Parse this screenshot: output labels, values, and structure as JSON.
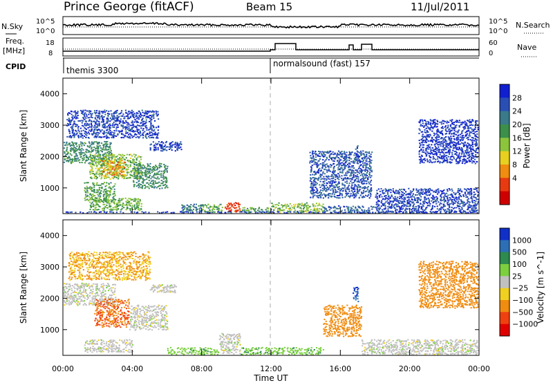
{
  "header": {
    "title": "Prince George (fitACF)",
    "beam": "Beam 15",
    "date": "11/Jul/2011"
  },
  "status": {
    "nsky_label": "N.Sky",
    "nsearch_label": "N.Search",
    "freq_label": "Freq.",
    "freq_unit": "[MHz]",
    "nave_label": "Nave",
    "cpid_label": "CPID",
    "noise_ticks_left": [
      "10^5",
      "10^0"
    ],
    "noise_ticks_right": [
      "10^5",
      "10^0"
    ],
    "freq_ticks": [
      "18",
      "8"
    ],
    "nave_ticks": [
      "60",
      "0"
    ],
    "cpid_segments": [
      {
        "label": "themis 3300",
        "start_hour": 0
      },
      {
        "label": "normalsound (fast) 157",
        "start_hour": 12
      }
    ]
  },
  "axes": {
    "ylabel": "Slant Range [km]",
    "xlabel": "Time UT",
    "y_ticks": [
      "4000",
      "3000",
      "2000",
      "1000"
    ],
    "y_tick_values": [
      4000,
      3000,
      2000,
      1000
    ],
    "x_ticks": [
      "00:00",
      "04:00",
      "08:00",
      "12:00",
      "16:00",
      "20:00",
      "00:00"
    ],
    "x_tick_hours": [
      0,
      4,
      8,
      12,
      16,
      20,
      24
    ]
  },
  "chart_data": [
    {
      "type": "heatmap",
      "parameter": "Power",
      "colorbar_label": "Power [dB]",
      "colorbar_ticks": [
        "28",
        "24",
        "20",
        "16",
        "12",
        "8",
        "4"
      ],
      "colorbar_values": [
        28,
        24,
        20,
        16,
        12,
        8,
        4
      ],
      "colors": [
        "#1020d0",
        "#2a4fb4",
        "#3a7a8a",
        "#3c8f4a",
        "#8cc43c",
        "#e8d020",
        "#f08c10",
        "#e83a10",
        "#d00000"
      ],
      "x_range_hours": [
        0,
        24
      ],
      "y_range_km": [
        180,
        4500
      ],
      "regions": [
        {
          "t0": 0.0,
          "t1": 2.8,
          "r0": 1800,
          "r1": 2500,
          "v": 12
        },
        {
          "t0": 1.5,
          "t1": 4.5,
          "r0": 1300,
          "r1": 2100,
          "v": 16
        },
        {
          "t0": 2.2,
          "t1": 3.6,
          "r0": 1400,
          "r1": 1900,
          "v": 22
        },
        {
          "t0": 4.0,
          "t1": 6.0,
          "r0": 1000,
          "r1": 1800,
          "v": 12
        },
        {
          "t0": 1.2,
          "t1": 3.0,
          "r0": 550,
          "r1": 1200,
          "v": 14
        },
        {
          "t0": 1.5,
          "t1": 4.5,
          "r0": 300,
          "r1": 700,
          "v": 15
        },
        {
          "t0": 6.8,
          "t1": 8.0,
          "r0": 250,
          "r1": 500,
          "v": 10
        },
        {
          "t0": 8.0,
          "t1": 9.2,
          "r0": 250,
          "r1": 500,
          "v": 14
        },
        {
          "t0": 9.3,
          "t1": 10.2,
          "r0": 250,
          "r1": 550,
          "v": 26
        },
        {
          "t0": 10.2,
          "t1": 12.0,
          "r0": 220,
          "r1": 400,
          "v": 14
        },
        {
          "t0": 12.0,
          "t1": 15.0,
          "r0": 220,
          "r1": 550,
          "v": 16
        },
        {
          "t0": 15.0,
          "t1": 18.0,
          "r0": 220,
          "r1": 450,
          "v": 8
        },
        {
          "t0": 14.2,
          "t1": 17.8,
          "r0": 700,
          "r1": 2200,
          "v": 7
        },
        {
          "t0": 16.8,
          "t1": 17.0,
          "r0": 1900,
          "r1": 2400,
          "v": 6
        },
        {
          "t0": 5.0,
          "t1": 6.8,
          "r0": 2200,
          "r1": 2500,
          "v": 6
        },
        {
          "t0": 0.2,
          "t1": 5.5,
          "r0": 2600,
          "r1": 3500,
          "v": 6
        },
        {
          "t0": 18.0,
          "t1": 24.0,
          "r0": 220,
          "r1": 1000,
          "v": 6
        },
        {
          "t0": 20.5,
          "t1": 24.0,
          "r0": 1800,
          "r1": 3200,
          "v": 5
        },
        {
          "t0": 0.0,
          "t1": 24.0,
          "r0": 190,
          "r1": 260,
          "v": 6
        }
      ]
    },
    {
      "type": "heatmap",
      "parameter": "Velocity",
      "colorbar_label": "Velocity [m s^-1]",
      "colorbar_ticks": [
        "1000",
        "500",
        "100",
        "25",
        "−25",
        "−100",
        "−500",
        "−1000"
      ],
      "colorbar_values": [
        1000,
        500,
        100,
        25,
        -25,
        -100,
        -500,
        -1000
      ],
      "colors": [
        "#1030c8",
        "#2d6fb5",
        "#2e8a4e",
        "#7cd040",
        "#c0c0c0",
        "#f0d020",
        "#f08c10",
        "#f04010",
        "#e00000"
      ],
      "x_range_hours": [
        0,
        24
      ],
      "y_range_km": [
        180,
        4500
      ],
      "regions": [
        {
          "t0": 0.0,
          "t1": 3.0,
          "r0": 1800,
          "r1": 2500,
          "v": 0
        },
        {
          "t0": 1.8,
          "t1": 3.8,
          "r0": 1100,
          "r1": 2000,
          "v": -300
        },
        {
          "t0": 3.8,
          "t1": 6.0,
          "r0": 1000,
          "r1": 1800,
          "v": 0
        },
        {
          "t0": 1.2,
          "t1": 4.0,
          "r0": 300,
          "r1": 700,
          "v": 0
        },
        {
          "t0": 6.0,
          "t1": 9.0,
          "r0": 220,
          "r1": 450,
          "v": 80
        },
        {
          "t0": 9.0,
          "t1": 10.2,
          "r0": 250,
          "r1": 900,
          "v": 0
        },
        {
          "t0": 10.2,
          "t1": 15.0,
          "r0": 220,
          "r1": 450,
          "v": 80
        },
        {
          "t0": 15.0,
          "t1": 17.2,
          "r0": 800,
          "r1": 1800,
          "v": -200
        },
        {
          "t0": 16.7,
          "t1": 17.0,
          "r0": 1900,
          "r1": 2400,
          "v": 700
        },
        {
          "t0": 17.2,
          "t1": 24.0,
          "r0": 220,
          "r1": 700,
          "v": 0
        },
        {
          "t0": 5.0,
          "t1": 6.5,
          "r0": 2200,
          "r1": 2450,
          "v": 0
        },
        {
          "t0": 20.5,
          "t1": 24.0,
          "r0": 1700,
          "r1": 3200,
          "v": -150
        },
        {
          "t0": 0.3,
          "t1": 5.0,
          "r0": 2600,
          "r1": 3500,
          "v": -100
        }
      ]
    }
  ]
}
